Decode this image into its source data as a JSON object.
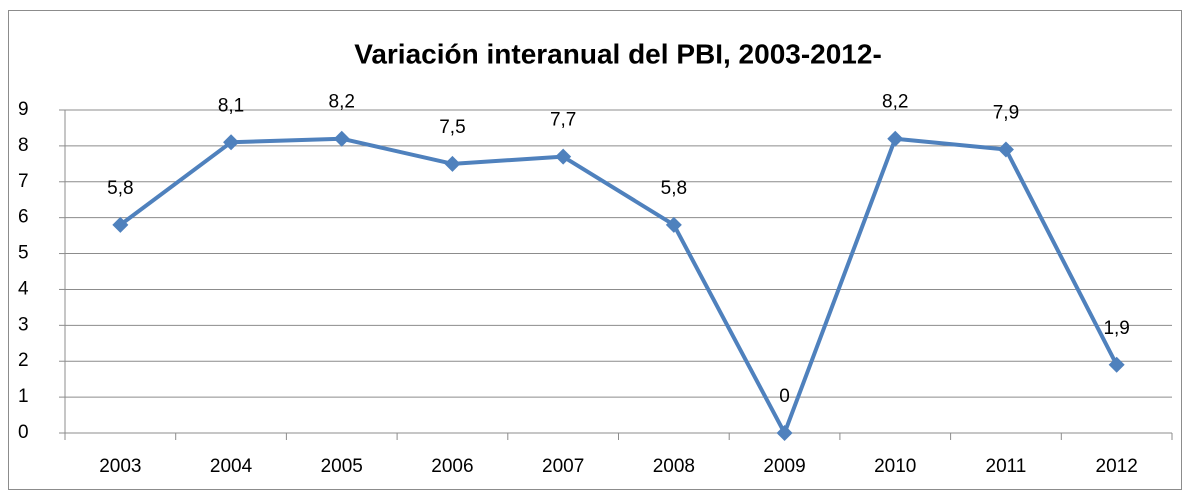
{
  "chart_data": {
    "type": "line",
    "title": "Variación interanual del PBI, 2003-2012-",
    "categories": [
      "2003",
      "2004",
      "2005",
      "2006",
      "2007",
      "2008",
      "2009",
      "2010",
      "2011",
      "2012"
    ],
    "values": [
      5.8,
      8.1,
      8.2,
      7.5,
      7.7,
      5.8,
      0,
      8.2,
      7.9,
      1.9
    ],
    "value_labels": [
      "5,8",
      "8,1",
      "8,2",
      "7,5",
      "7,7",
      "5,8",
      "0",
      "8,2",
      "7,9",
      "1,9"
    ],
    "color": "#4f81bd",
    "ylim": [
      0,
      9
    ],
    "yticks": [
      0,
      1,
      2,
      3,
      4,
      5,
      6,
      7,
      8,
      9
    ],
    "grid": true
  }
}
